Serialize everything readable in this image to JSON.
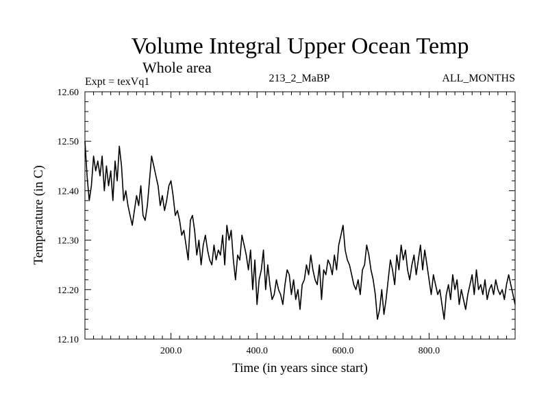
{
  "chart_data": {
    "type": "line",
    "title": "Volume Integral Upper Ocean Temp",
    "subtitle": "Whole area",
    "annotations": {
      "experiment": "Expt = texVq1",
      "run": "213_2_MaBP",
      "months": "ALL_MONTHS"
    },
    "xlabel": "Time (in years since start)",
    "ylabel": "Temperature (in C)",
    "xlim": [
      0,
      1000
    ],
    "ylim": [
      12.1,
      12.6
    ],
    "x_ticks": [
      200,
      400,
      600,
      800
    ],
    "x_tick_labels": [
      "200.0",
      "400.0",
      "600.0",
      "800.0"
    ],
    "y_ticks": [
      12.1,
      12.2,
      12.3,
      12.4,
      12.5,
      12.6
    ],
    "y_tick_labels": [
      "12.10",
      "12.20",
      "12.30",
      "12.40",
      "12.50",
      "12.60"
    ],
    "grid": false,
    "series": [
      {
        "name": "Temperature",
        "x": [
          0,
          5,
          10,
          15,
          20,
          25,
          30,
          35,
          40,
          45,
          50,
          55,
          60,
          65,
          70,
          75,
          80,
          85,
          90,
          95,
          100,
          105,
          110,
          115,
          120,
          125,
          130,
          135,
          140,
          145,
          150,
          155,
          160,
          165,
          170,
          175,
          180,
          185,
          190,
          195,
          200,
          205,
          210,
          215,
          220,
          225,
          230,
          235,
          240,
          245,
          250,
          255,
          260,
          265,
          270,
          275,
          280,
          285,
          290,
          295,
          300,
          305,
          310,
          315,
          320,
          325,
          330,
          335,
          340,
          345,
          350,
          355,
          360,
          365,
          370,
          375,
          380,
          385,
          390,
          395,
          400,
          405,
          410,
          415,
          420,
          425,
          430,
          435,
          440,
          445,
          450,
          455,
          460,
          465,
          470,
          475,
          480,
          485,
          490,
          495,
          500,
          505,
          510,
          515,
          520,
          525,
          530,
          535,
          540,
          545,
          550,
          555,
          560,
          565,
          570,
          575,
          580,
          585,
          590,
          595,
          600,
          605,
          610,
          615,
          620,
          625,
          630,
          635,
          640,
          645,
          650,
          655,
          660,
          665,
          670,
          675,
          680,
          685,
          690,
          695,
          700,
          705,
          710,
          715,
          720,
          725,
          730,
          735,
          740,
          745,
          750,
          755,
          760,
          765,
          770,
          775,
          780,
          785,
          790,
          795,
          800,
          805,
          810,
          815,
          820,
          825,
          830,
          835,
          840,
          845,
          850,
          855,
          860,
          865,
          870,
          875,
          880,
          885,
          890,
          895,
          900,
          905,
          910,
          915,
          920,
          925,
          930,
          935,
          940,
          945,
          950,
          955,
          960,
          965,
          970,
          975,
          980,
          985,
          990,
          995,
          1000
        ],
        "y": [
          12.5,
          12.43,
          12.38,
          12.41,
          12.47,
          12.44,
          12.46,
          12.43,
          12.47,
          12.4,
          12.45,
          12.41,
          12.44,
          12.38,
          12.46,
          12.42,
          12.49,
          12.45,
          12.38,
          12.4,
          12.37,
          12.35,
          12.33,
          12.36,
          12.39,
          12.37,
          12.41,
          12.35,
          12.34,
          12.37,
          12.42,
          12.47,
          12.45,
          12.43,
          12.41,
          12.37,
          12.39,
          12.36,
          12.38,
          12.41,
          12.42,
          12.39,
          12.35,
          12.36,
          12.34,
          12.31,
          12.32,
          12.29,
          12.26,
          12.34,
          12.35,
          12.32,
          12.27,
          12.3,
          12.25,
          12.29,
          12.31,
          12.28,
          12.26,
          12.25,
          12.29,
          12.26,
          12.28,
          12.27,
          12.31,
          12.25,
          12.33,
          12.3,
          12.32,
          12.26,
          12.22,
          12.27,
          12.26,
          12.31,
          12.29,
          12.27,
          12.24,
          12.28,
          12.2,
          12.26,
          12.17,
          12.22,
          12.24,
          12.28,
          12.2,
          12.25,
          12.21,
          12.18,
          12.19,
          12.22,
          12.2,
          12.19,
          12.17,
          12.21,
          12.24,
          12.23,
          12.19,
          12.22,
          12.18,
          12.2,
          12.16,
          12.21,
          12.22,
          12.25,
          12.23,
          12.27,
          12.24,
          12.22,
          12.21,
          12.25,
          12.18,
          12.24,
          12.23,
          12.26,
          12.25,
          12.23,
          12.27,
          12.24,
          12.29,
          12.31,
          12.33,
          12.28,
          12.26,
          12.25,
          12.23,
          12.21,
          12.2,
          12.22,
          12.19,
          12.24,
          12.25,
          12.29,
          12.27,
          12.24,
          12.22,
          12.19,
          12.14,
          12.16,
          12.2,
          12.15,
          12.18,
          12.22,
          12.26,
          12.24,
          12.21,
          12.27,
          12.24,
          12.29,
          12.26,
          12.28,
          12.24,
          12.22,
          12.25,
          12.27,
          12.23,
          12.26,
          12.29,
          12.24,
          12.28,
          12.25,
          12.22,
          12.19,
          12.23,
          12.21,
          12.19,
          12.2,
          12.17,
          12.14,
          12.19,
          12.21,
          12.18,
          12.23,
          12.2,
          12.22,
          12.17,
          12.2,
          12.18,
          12.16,
          12.19,
          12.21,
          12.23,
          12.19,
          12.24,
          12.2,
          12.21,
          12.19,
          12.22,
          12.18,
          12.2,
          12.21,
          12.19,
          12.22,
          12.2,
          12.19,
          12.2,
          12.18,
          12.21,
          12.23,
          12.21,
          12.19,
          12.17
        ]
      }
    ]
  }
}
